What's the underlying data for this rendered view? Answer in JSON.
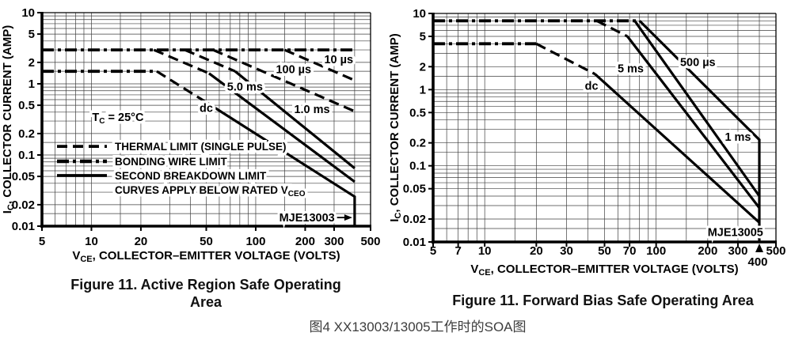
{
  "page": {
    "caption": "图4 XX13003/13005工作时的SOA图"
  },
  "chart_data": [
    {
      "type": "line",
      "title": "Figure 11. Active Region Safe Operating Area",
      "caption_lines": [
        "Figure 11. Active Region Safe Operating",
        "Area"
      ],
      "device": "MJE13003",
      "xlabel_parts": [
        [
          "V",
          0
        ],
        [
          "CE",
          1
        ],
        [
          ", COLLECTOR–EMITTER VOLTAGE (VOLTS)",
          0
        ]
      ],
      "ylabel_parts": [
        [
          "I",
          0
        ],
        [
          "C",
          1
        ],
        [
          ", COLLECTOR CURRENT (AMP)",
          0
        ]
      ],
      "xlim": [
        5,
        500
      ],
      "ylim": [
        0.01,
        10
      ],
      "xticks": [
        {
          "v": 5,
          "label": "5"
        },
        {
          "v": 10,
          "label": "10"
        },
        {
          "v": 20,
          "label": "20"
        },
        {
          "v": 50,
          "label": "50"
        },
        {
          "v": 100,
          "label": "100"
        },
        {
          "v": 200,
          "label": "200"
        },
        {
          "v": 300,
          "label": "300"
        },
        {
          "v": 500,
          "label": "500"
        }
      ],
      "yticks": [
        {
          "v": 10,
          "label": "10"
        },
        {
          "v": 5,
          "label": "5"
        },
        {
          "v": 2,
          "label": "2"
        },
        {
          "v": 1,
          "label": "1"
        },
        {
          "v": 0.5,
          "label": "0.5"
        },
        {
          "v": 0.2,
          "label": "0.2"
        },
        {
          "v": 0.1,
          "label": "0.1"
        },
        {
          "v": 0.05,
          "label": "0.05"
        },
        {
          "v": 0.02,
          "label": "0.02"
        },
        {
          "v": 0.01,
          "label": "0.01"
        }
      ],
      "note": {
        "parts": [
          [
            "T",
            0
          ],
          [
            "C",
            1
          ],
          [
            " = 25°C",
            0
          ]
        ],
        "x": 14.5,
        "y": 0.34
      },
      "legend": {
        "rows": [
          {
            "style": "dashed",
            "label": "THERMAL LIMIT (SINGLE PULSE)",
            "y": 0.132
          },
          {
            "style": "dashdot",
            "label": "BONDING WIRE LIMIT",
            "y": 0.0815
          },
          {
            "style": "solid",
            "label": "SECOND BREAKDOWN LIMIT",
            "y": 0.0514
          },
          {
            "style": "none",
            "label": "CURVES APPLY BELOW RATED V",
            "sub": "CEO",
            "y": 0.0324
          }
        ]
      },
      "series": [
        {
          "name": "bonding-wire-limit-pulse",
          "style": "dashdot",
          "points": [
            [
              5,
              3
            ],
            [
              400,
              3
            ]
          ]
        },
        {
          "name": "bonding-wire-limit-dc",
          "style": "dashdot",
          "points": [
            [
              5,
              1.5
            ],
            [
              25,
              1.5
            ]
          ]
        },
        {
          "name": "thermal-limit-dc",
          "style": "dashed",
          "points": [
            [
              25,
              1.5
            ],
            [
              50,
              0.55
            ]
          ]
        },
        {
          "name": "second-breakdown-dc",
          "style": "solid",
          "points": [
            [
              50,
              0.55
            ],
            [
              400,
              0.026
            ],
            [
              400,
              0.01
            ]
          ]
        },
        {
          "name": "thermal-limit-5ms",
          "style": "dashed",
          "points": [
            [
              24,
              3
            ],
            [
              52,
              1.4
            ]
          ]
        },
        {
          "name": "second-breakdown-5ms",
          "style": "solid",
          "points": [
            [
              52,
              1.4
            ],
            [
              400,
              0.042
            ]
          ]
        },
        {
          "name": "thermal-limit-1ms",
          "style": "dashed",
          "points": [
            [
              37,
              3
            ],
            [
              75,
              1.5
            ]
          ]
        },
        {
          "name": "second-breakdown-1ms",
          "style": "solid",
          "points": [
            [
              75,
              1.5
            ],
            [
              400,
              0.065
            ]
          ]
        },
        {
          "name": "thermal-limit-100us",
          "style": "dashed",
          "points": [
            [
              55,
              3
            ],
            [
              400,
              0.41
            ]
          ]
        },
        {
          "name": "thermal-limit-10us",
          "style": "dashed",
          "points": [
            [
              150,
              3
            ],
            [
              400,
              1.12
            ]
          ]
        }
      ],
      "curve_labels": [
        {
          "text": "10 µs",
          "x": 320,
          "y": 2.2
        },
        {
          "text": "100 µs",
          "x": 170,
          "y": 1.6
        },
        {
          "text": "5.0 ms",
          "x": 86,
          "y": 0.92
        },
        {
          "text": "dc",
          "x": 50,
          "y": 0.46
        },
        {
          "text": "1.0 ms",
          "x": 220,
          "y": 0.44
        }
      ],
      "device_label": {
        "text": "MJE13003",
        "x": 205,
        "y": 0.0132,
        "arrow_to_x": 400
      }
    },
    {
      "type": "line",
      "title": "Figure 11. Forward Bias Safe Operating Area",
      "caption_lines": [
        "Figure 11. Forward Bias Safe Operating Area"
      ],
      "device": "MJE13005",
      "xlabel_parts": [
        [
          "V",
          0
        ],
        [
          "CE",
          1
        ],
        [
          ", COLLECTOR–EMITTER VOLTAGE (VOLTS)",
          0
        ]
      ],
      "ylabel_parts": [
        [
          "I",
          0
        ],
        [
          "C",
          1
        ],
        [
          ", COLLECTOR CURRENT (AMP)",
          0
        ]
      ],
      "xlim": [
        5,
        500
      ],
      "ylim": [
        0.01,
        10
      ],
      "xticks": [
        {
          "v": 5,
          "label": "5"
        },
        {
          "v": 7,
          "label": "7"
        },
        {
          "v": 10,
          "label": "10"
        },
        {
          "v": 20,
          "label": "20"
        },
        {
          "v": 30,
          "label": "30"
        },
        {
          "v": 50,
          "label": "50"
        },
        {
          "v": 70,
          "label": "70"
        },
        {
          "v": 100,
          "label": "100"
        },
        {
          "v": 200,
          "label": "200"
        },
        {
          "v": 300,
          "label": "300"
        },
        {
          "v": 500,
          "label": "500"
        }
      ],
      "yticks": [
        {
          "v": 10,
          "label": "10"
        },
        {
          "v": 5,
          "label": "5"
        },
        {
          "v": 2,
          "label": "2"
        },
        {
          "v": 1,
          "label": "1"
        },
        {
          "v": 0.5,
          "label": "0.5"
        },
        {
          "v": 0.2,
          "label": "0.2"
        },
        {
          "v": 0.1,
          "label": "0.1"
        },
        {
          "v": 0.05,
          "label": "0.05"
        },
        {
          "v": 0.02,
          "label": "0.02"
        },
        {
          "v": 0.01,
          "label": "0.01"
        }
      ],
      "series": [
        {
          "name": "bonding-wire-limit-pulse",
          "style": "dashdot",
          "points": [
            [
              5,
              8
            ],
            [
              80,
              8
            ]
          ]
        },
        {
          "name": "bonding-wire-limit-dc",
          "style": "dashdot",
          "points": [
            [
              5,
              4
            ],
            [
              20,
              4
            ]
          ]
        },
        {
          "name": "thermal-limit-dc",
          "style": "dashed",
          "points": [
            [
              20,
              4
            ],
            [
              44,
              1.6
            ]
          ]
        },
        {
          "name": "second-breakdown-dc",
          "style": "solid",
          "points": [
            [
              44,
              1.6
            ],
            [
              400,
              0.018
            ]
          ]
        },
        {
          "name": "thermal-limit-5ms",
          "style": "dashed",
          "points": [
            [
              45,
              8
            ],
            [
              68,
              5
            ]
          ]
        },
        {
          "name": "second-breakdown-5ms",
          "style": "solid",
          "points": [
            [
              68,
              5
            ],
            [
              400,
              0.028
            ]
          ]
        },
        {
          "name": "second-breakdown-1ms",
          "style": "solid",
          "points": [
            [
              75,
              8
            ],
            [
              400,
              0.04
            ]
          ]
        },
        {
          "name": "second-breakdown-500us",
          "style": "solid",
          "points": [
            [
              80,
              8
            ],
            [
              400,
              0.22
            ],
            [
              400,
              0.01
            ]
          ]
        }
      ],
      "curve_labels": [
        {
          "text": "500 µs",
          "x": 175,
          "y": 2.3
        },
        {
          "text": "5 ms",
          "x": 71,
          "y": 1.9
        },
        {
          "text": "dc",
          "x": 42,
          "y": 1.12
        },
        {
          "text": "1 ms",
          "x": 300,
          "y": 0.24
        }
      ],
      "device_label": {
        "text": "MJE13005",
        "x": 290,
        "y": 0.0135
      },
      "x_annotation": {
        "label": "400",
        "v": 400
      }
    }
  ]
}
